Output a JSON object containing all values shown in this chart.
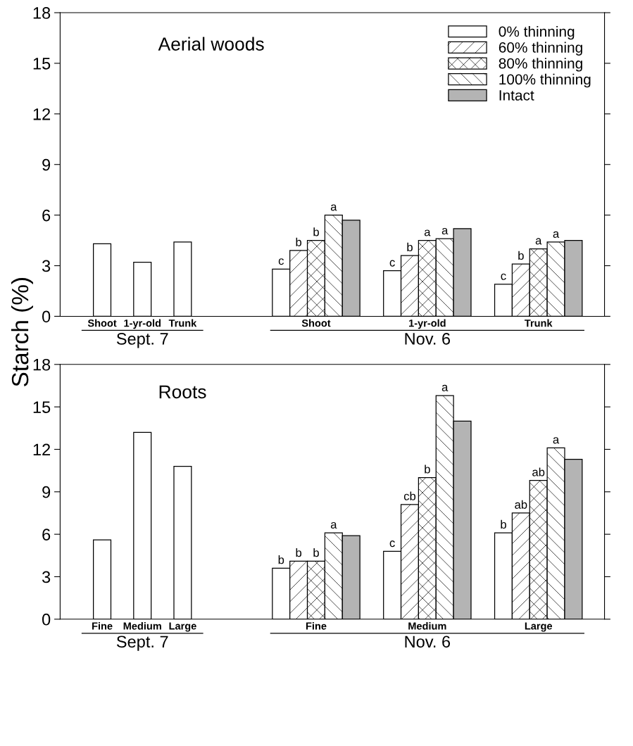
{
  "chart_data": [
    {
      "type": "bar",
      "title": "Aerial woods",
      "ylabel": "Starch (%)",
      "categories": [
        "Shoot",
        "1-yr-old",
        "Trunk",
        "Shoot",
        "1-yr-old",
        "Trunk"
      ],
      "ylim": [
        0,
        18
      ],
      "yticks": [
        0,
        3,
        6,
        9,
        12,
        15,
        18
      ],
      "legend": "top right",
      "grid": false,
      "annotations": [
        "Sept. 7",
        "Nov. 6"
      ],
      "series": [
        {
          "name": "0% thinning",
          "color": "#ffffff",
          "values": [
            4.3,
            3.2,
            4.4,
            2.8,
            2.7,
            1.9
          ],
          "value_labels": [
            null,
            null,
            null,
            "c",
            "c",
            "c"
          ]
        },
        {
          "name": "60% thinning",
          "color": "#ffffff",
          "values": [
            null,
            null,
            null,
            3.9,
            3.6,
            3.1
          ],
          "value_labels": [
            null,
            null,
            null,
            "b",
            "b",
            "b"
          ]
        },
        {
          "name": "80% thinning",
          "color": "#ffffff",
          "values": [
            null,
            null,
            null,
            4.5,
            4.5,
            4.0
          ],
          "value_labels": [
            null,
            null,
            null,
            "b",
            "a",
            "a"
          ]
        },
        {
          "name": "100% thinning",
          "color": "#ffffff",
          "values": [
            null,
            null,
            null,
            6.0,
            4.6,
            4.4
          ],
          "value_labels": [
            null,
            null,
            null,
            "a",
            "a",
            "a"
          ]
        },
        {
          "name": "Intact",
          "color": "#b4b4b4",
          "values": [
            null,
            null,
            null,
            5.7,
            5.2,
            4.5
          ]
        }
      ]
    },
    {
      "type": "bar",
      "title": "Roots",
      "categories": [
        "Fine",
        "Medium",
        "Large",
        "Fine",
        "Medium",
        "Large"
      ],
      "ylim": [
        0,
        18
      ],
      "yticks": [
        0,
        3,
        6,
        9,
        12,
        15,
        18
      ],
      "grid": false,
      "annotations": [
        "Sept. 7",
        "Nov. 6"
      ],
      "series": [
        {
          "color": "#ffffff",
          "values": [
            5.6,
            13.2,
            10.8,
            3.6,
            4.8,
            6.1
          ],
          "value_labels": [
            null,
            null,
            null,
            "b",
            "c",
            "b"
          ]
        },
        {
          "color": "#ffffff",
          "values": [
            null,
            null,
            null,
            4.1,
            8.1,
            7.5
          ],
          "value_labels": [
            null,
            null,
            null,
            "b",
            "cb",
            "ab"
          ]
        },
        {
          "color": "#ffffff",
          "values": [
            null,
            null,
            null,
            4.1,
            10.0,
            9.8
          ],
          "value_labels": [
            null,
            null,
            null,
            "b",
            "b",
            "ab"
          ]
        },
        {
          "color": "#ffffff",
          "values": [
            null,
            null,
            null,
            6.1,
            15.8,
            12.1
          ],
          "value_labels": [
            null,
            null,
            null,
            "a",
            "a",
            "a"
          ]
        },
        {
          "color": "#b4b4b4",
          "values": [
            null,
            null,
            null,
            5.9,
            14.0,
            11.3
          ]
        }
      ]
    }
  ]
}
